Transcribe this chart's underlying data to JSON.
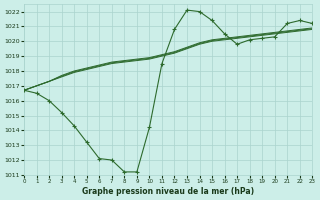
{
  "background_color": "#cceee8",
  "grid_color": "#aad4ce",
  "line_color": "#2d6a2d",
  "text_color": "#1a3a1a",
  "xlabel": "Graphe pression niveau de la mer (hPa)",
  "ylim": [
    1011,
    1022.5
  ],
  "xlim": [
    0,
    23
  ],
  "yticks": [
    1011,
    1012,
    1013,
    1014,
    1015,
    1016,
    1017,
    1018,
    1019,
    1020,
    1021,
    1022
  ],
  "series": [
    [
      1016.7,
      1016.5,
      1016.0,
      1015.2,
      1014.3,
      1013.2,
      1012.1,
      1012.0,
      1011.2,
      1011.2,
      1014.2,
      1018.5,
      1020.8,
      1022.1,
      1022.0,
      1021.4,
      1020.5,
      1019.8,
      1020.1,
      1020.2,
      1020.3,
      1021.2,
      1021.4,
      1021.2
    ],
    [
      1016.7,
      1017.0,
      1017.3,
      1017.6,
      1017.9,
      1018.1,
      1018.3,
      1018.5,
      1018.6,
      1018.7,
      1018.8,
      1019.0,
      1019.2,
      1019.5,
      1019.8,
      1020.0,
      1020.1,
      1020.2,
      1020.3,
      1020.4,
      1020.5,
      1020.6,
      1020.7,
      1020.8
    ],
    [
      1016.7,
      1017.0,
      1017.3,
      1017.65,
      1017.95,
      1018.15,
      1018.35,
      1018.55,
      1018.65,
      1018.75,
      1018.85,
      1019.05,
      1019.25,
      1019.55,
      1019.85,
      1020.05,
      1020.15,
      1020.25,
      1020.35,
      1020.45,
      1020.55,
      1020.65,
      1020.75,
      1020.85
    ],
    [
      1016.7,
      1017.0,
      1017.3,
      1017.7,
      1018.0,
      1018.2,
      1018.4,
      1018.6,
      1018.7,
      1018.8,
      1018.9,
      1019.1,
      1019.3,
      1019.6,
      1019.9,
      1020.1,
      1020.2,
      1020.3,
      1020.4,
      1020.5,
      1020.6,
      1020.7,
      1020.8,
      1020.9
    ]
  ]
}
